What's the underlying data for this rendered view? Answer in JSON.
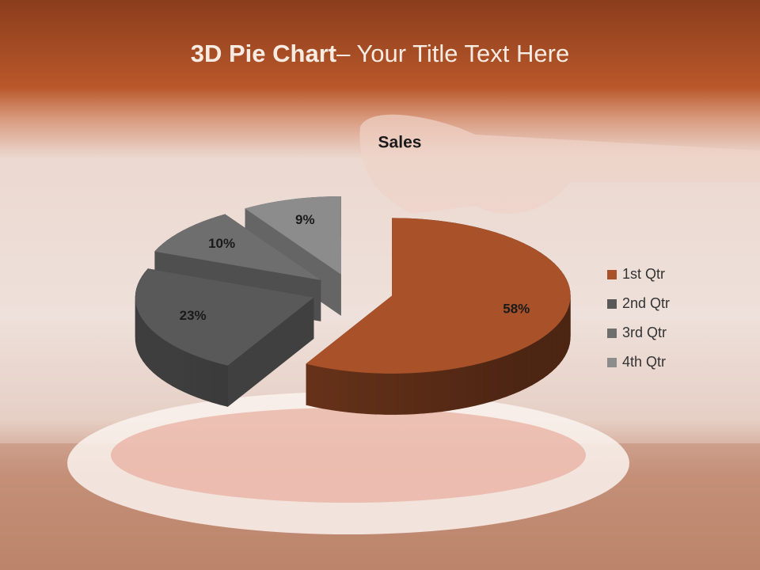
{
  "slide": {
    "title_bold": "3D Pie Chart",
    "title_rest": "– Your Title Text Here"
  },
  "chart_data": {
    "type": "pie",
    "title": "Sales",
    "categories": [
      "1st Qtr",
      "2nd Qtr",
      "3rd Qtr",
      "4th Qtr"
    ],
    "values": [
      58,
      23,
      10,
      9
    ],
    "value_labels": [
      "58%",
      "23%",
      "10%",
      "9%"
    ],
    "colors": [
      "#a9522a",
      "#595959",
      "#6e6e6e",
      "#8c8c8c"
    ],
    "legend": "right"
  }
}
